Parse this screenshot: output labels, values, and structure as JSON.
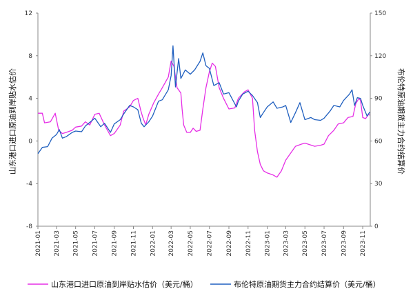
{
  "chart_data": {
    "type": "line",
    "y_left_label": "山东港口进口原油到岸贴水估价",
    "y_right_label": "布伦特原油期货主力合约结算价",
    "y_left_lim": [
      -8,
      12
    ],
    "y_left_ticks": [
      -8,
      -4,
      0,
      4,
      8,
      12
    ],
    "y_right_lim": [
      0,
      150
    ],
    "y_right_ticks": [
      0,
      30,
      60,
      90,
      120,
      150
    ],
    "x_range": [
      "2021-01-01",
      "2023-11-25"
    ],
    "x_ticks": [
      "2021-01",
      "2021-03",
      "2021-05",
      "2021-07",
      "2021-09",
      "2021-11",
      "2022-01",
      "2022-03",
      "2022-05",
      "2022-07",
      "2022-09",
      "2022-11",
      "2023-01",
      "2023-03",
      "2023-05",
      "2023-07",
      "2023-09",
      "2023-11"
    ],
    "grid": false,
    "legend_position": "bottom",
    "series": [
      {
        "name": "山东港口进口原油到岸贴水估价（美元/桶）",
        "axis": "left",
        "color": "#e62ee6",
        "points": [
          [
            "2021-01-01",
            2.6
          ],
          [
            "2021-01-15",
            2.6
          ],
          [
            "2021-01-22",
            1.7
          ],
          [
            "2021-02-10",
            1.8
          ],
          [
            "2021-02-25",
            2.6
          ],
          [
            "2021-03-08",
            1.0
          ],
          [
            "2021-03-20",
            0.7
          ],
          [
            "2021-04-01",
            0.8
          ],
          [
            "2021-04-20",
            1.0
          ],
          [
            "2021-05-01",
            1.3
          ],
          [
            "2021-05-20",
            1.4
          ],
          [
            "2021-06-01",
            1.8
          ],
          [
            "2021-06-15",
            1.5
          ],
          [
            "2021-07-01",
            2.5
          ],
          [
            "2021-07-15",
            2.6
          ],
          [
            "2021-08-01",
            1.5
          ],
          [
            "2021-08-20",
            0.5
          ],
          [
            "2021-09-01",
            0.7
          ],
          [
            "2021-09-20",
            1.5
          ],
          [
            "2021-10-01",
            2.8
          ],
          [
            "2021-10-20",
            3.2
          ],
          [
            "2021-11-01",
            3.8
          ],
          [
            "2021-11-15",
            4.0
          ],
          [
            "2021-11-25",
            2.8
          ],
          [
            "2021-12-01",
            2.2
          ],
          [
            "2021-12-10",
            1.5
          ],
          [
            "2021-12-20",
            2.5
          ],
          [
            "2022-01-05",
            3.6
          ],
          [
            "2022-01-20",
            4.4
          ],
          [
            "2022-02-01",
            5.0
          ],
          [
            "2022-02-20",
            6.0
          ],
          [
            "2022-03-01",
            7.5
          ],
          [
            "2022-03-10",
            7.0
          ],
          [
            "2022-03-20",
            5.0
          ],
          [
            "2022-04-01",
            4.5
          ],
          [
            "2022-04-05",
            3.0
          ],
          [
            "2022-04-10",
            1.5
          ],
          [
            "2022-04-20",
            0.8
          ],
          [
            "2022-05-01",
            0.8
          ],
          [
            "2022-05-10",
            1.2
          ],
          [
            "2022-05-20",
            0.9
          ],
          [
            "2022-06-01",
            1.0
          ],
          [
            "2022-06-10",
            3.0
          ],
          [
            "2022-06-20",
            5.0
          ],
          [
            "2022-07-01",
            6.5
          ],
          [
            "2022-07-10",
            7.3
          ],
          [
            "2022-07-20",
            7.0
          ],
          [
            "2022-08-01",
            5.0
          ],
          [
            "2022-08-15",
            4.0
          ],
          [
            "2022-09-01",
            3.0
          ],
          [
            "2022-09-20",
            3.1
          ],
          [
            "2022-10-01",
            4.0
          ],
          [
            "2022-10-20",
            4.6
          ],
          [
            "2022-11-01",
            4.8
          ],
          [
            "2022-11-15",
            4.0
          ],
          [
            "2022-11-22",
            1.0
          ],
          [
            "2022-12-01",
            -1.0
          ],
          [
            "2022-12-10",
            -2.2
          ],
          [
            "2022-12-20",
            -2.8
          ],
          [
            "2023-01-01",
            -3.0
          ],
          [
            "2023-01-20",
            -3.2
          ],
          [
            "2023-02-01",
            -3.4
          ],
          [
            "2023-02-15",
            -2.8
          ],
          [
            "2023-03-01",
            -1.8
          ],
          [
            "2023-03-20",
            -1.0
          ],
          [
            "2023-04-01",
            -0.5
          ],
          [
            "2023-04-20",
            -0.3
          ],
          [
            "2023-05-01",
            -0.2
          ],
          [
            "2023-06-01",
            -0.5
          ],
          [
            "2023-06-20",
            -0.4
          ],
          [
            "2023-07-01",
            -0.3
          ],
          [
            "2023-07-15",
            0.5
          ],
          [
            "2023-08-01",
            1.0
          ],
          [
            "2023-08-15",
            1.6
          ],
          [
            "2023-09-01",
            1.7
          ],
          [
            "2023-09-15",
            2.2
          ],
          [
            "2023-10-01",
            2.3
          ],
          [
            "2023-10-10",
            3.5
          ],
          [
            "2023-10-20",
            4.0
          ],
          [
            "2023-10-25",
            3.8
          ],
          [
            "2023-11-01",
            2.2
          ],
          [
            "2023-11-10",
            2.1
          ],
          [
            "2023-11-20",
            2.5
          ],
          [
            "2023-11-24",
            2.4
          ]
        ]
      },
      {
        "name": "布伦特原油期货主力合约结算价（美元/桶）",
        "axis": "right",
        "color": "#1f5fbf",
        "points": [
          [
            "2021-01-01",
            51.0
          ],
          [
            "2021-01-15",
            55.5
          ],
          [
            "2021-02-01",
            56.0
          ],
          [
            "2021-02-15",
            62.0
          ],
          [
            "2021-03-01",
            64.5
          ],
          [
            "2021-03-10",
            68.0
          ],
          [
            "2021-03-20",
            62.0
          ],
          [
            "2021-04-01",
            63.0
          ],
          [
            "2021-04-20",
            66.0
          ],
          [
            "2021-05-01",
            67.0
          ],
          [
            "2021-05-20",
            66.5
          ],
          [
            "2021-06-01",
            70.5
          ],
          [
            "2021-06-20",
            74.0
          ],
          [
            "2021-07-01",
            76.0
          ],
          [
            "2021-07-20",
            70.0
          ],
          [
            "2021-08-01",
            72.5
          ],
          [
            "2021-08-20",
            66.0
          ],
          [
            "2021-09-01",
            72.0
          ],
          [
            "2021-09-20",
            75.0
          ],
          [
            "2021-10-01",
            79.0
          ],
          [
            "2021-10-20",
            85.0
          ],
          [
            "2021-11-01",
            84.0
          ],
          [
            "2021-11-15",
            82.0
          ],
          [
            "2021-11-26",
            72.5
          ],
          [
            "2021-12-05",
            70.0
          ],
          [
            "2021-12-20",
            73.5
          ],
          [
            "2022-01-01",
            77.5
          ],
          [
            "2022-01-20",
            88.0
          ],
          [
            "2022-02-01",
            89.0
          ],
          [
            "2022-02-20",
            96.0
          ],
          [
            "2022-03-01",
            106.0
          ],
          [
            "2022-03-07",
            127.0
          ],
          [
            "2022-03-15",
            98.0
          ],
          [
            "2022-03-25",
            118.0
          ],
          [
            "2022-04-01",
            104.0
          ],
          [
            "2022-04-15",
            110.0
          ],
          [
            "2022-05-01",
            107.0
          ],
          [
            "2022-05-15",
            110.0
          ],
          [
            "2022-06-01",
            116.0
          ],
          [
            "2022-06-10",
            122.0
          ],
          [
            "2022-06-20",
            113.0
          ],
          [
            "2022-07-01",
            111.0
          ],
          [
            "2022-07-15",
            99.0
          ],
          [
            "2022-08-01",
            101.0
          ],
          [
            "2022-08-15",
            93.0
          ],
          [
            "2022-09-01",
            94.0
          ],
          [
            "2022-09-25",
            84.0
          ],
          [
            "2022-10-01",
            88.0
          ],
          [
            "2022-10-15",
            93.0
          ],
          [
            "2022-11-01",
            95.0
          ],
          [
            "2022-11-15",
            92.0
          ],
          [
            "2022-12-01",
            87.0
          ],
          [
            "2022-12-10",
            76.5
          ],
          [
            "2022-12-20",
            80.0
          ],
          [
            "2023-01-01",
            84.0
          ],
          [
            "2023-01-20",
            87.5
          ],
          [
            "2023-02-01",
            83.0
          ],
          [
            "2023-02-20",
            84.0
          ],
          [
            "2023-03-01",
            85.0
          ],
          [
            "2023-03-17",
            73.0
          ],
          [
            "2023-04-01",
            80.0
          ],
          [
            "2023-04-15",
            87.0
          ],
          [
            "2023-05-01",
            75.0
          ],
          [
            "2023-05-20",
            76.5
          ],
          [
            "2023-06-01",
            75.0
          ],
          [
            "2023-06-20",
            74.5
          ],
          [
            "2023-07-01",
            76.0
          ],
          [
            "2023-07-20",
            81.0
          ],
          [
            "2023-08-01",
            85.0
          ],
          [
            "2023-08-20",
            84.0
          ],
          [
            "2023-09-01",
            88.5
          ],
          [
            "2023-09-20",
            93.0
          ],
          [
            "2023-09-28",
            96.0
          ],
          [
            "2023-10-06",
            85.0
          ],
          [
            "2023-10-15",
            90.5
          ],
          [
            "2023-10-25",
            90.0
          ],
          [
            "2023-11-01",
            85.0
          ],
          [
            "2023-11-15",
            77.5
          ],
          [
            "2023-11-24",
            80.5
          ]
        ]
      }
    ]
  }
}
